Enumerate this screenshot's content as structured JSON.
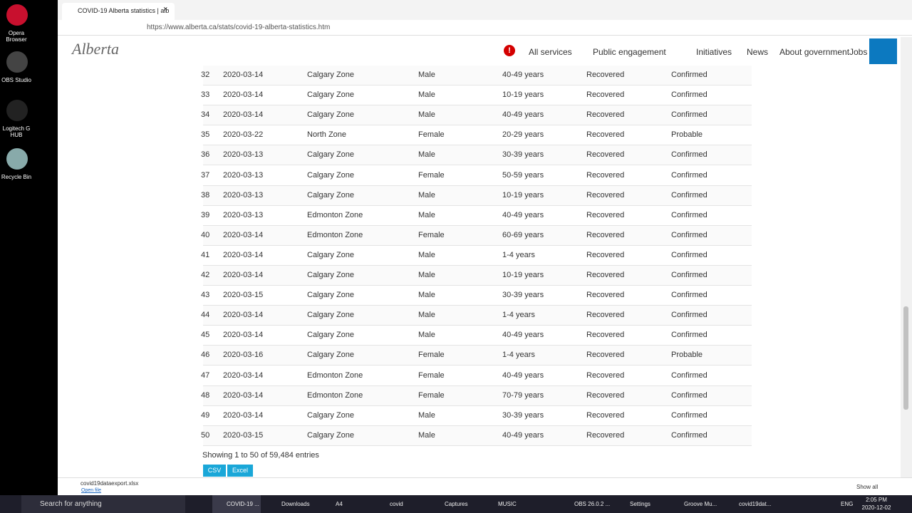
{
  "desktop_icons": [
    "Opera Browser",
    "OBS Studio",
    "Logitech G HUB",
    "Recycle Bin"
  ],
  "browser": {
    "tab_title": "COVID-19 Alberta statistics | alb",
    "url": "https://www.alberta.ca/stats/covid-19-alberta-statistics.htm"
  },
  "site": {
    "logo": "Alberta",
    "nav": [
      "All services",
      "Public engagement",
      "Initiatives",
      "News",
      "About government",
      "Jobs"
    ]
  },
  "table": {
    "rows": [
      [
        "32",
        "2020-03-14",
        "Calgary Zone",
        "Male",
        "40-49 years",
        "Recovered",
        "Confirmed"
      ],
      [
        "33",
        "2020-03-14",
        "Calgary Zone",
        "Male",
        "10-19 years",
        "Recovered",
        "Confirmed"
      ],
      [
        "34",
        "2020-03-14",
        "Calgary Zone",
        "Male",
        "40-49 years",
        "Recovered",
        "Confirmed"
      ],
      [
        "35",
        "2020-03-22",
        "North Zone",
        "Female",
        "20-29 years",
        "Recovered",
        "Probable"
      ],
      [
        "36",
        "2020-03-13",
        "Calgary Zone",
        "Male",
        "30-39 years",
        "Recovered",
        "Confirmed"
      ],
      [
        "37",
        "2020-03-13",
        "Calgary Zone",
        "Female",
        "50-59 years",
        "Recovered",
        "Confirmed"
      ],
      [
        "38",
        "2020-03-13",
        "Calgary Zone",
        "Male",
        "10-19 years",
        "Recovered",
        "Confirmed"
      ],
      [
        "39",
        "2020-03-13",
        "Edmonton Zone",
        "Male",
        "40-49 years",
        "Recovered",
        "Confirmed"
      ],
      [
        "40",
        "2020-03-14",
        "Edmonton Zone",
        "Female",
        "60-69 years",
        "Recovered",
        "Confirmed"
      ],
      [
        "41",
        "2020-03-14",
        "Calgary Zone",
        "Male",
        "1-4 years",
        "Recovered",
        "Confirmed"
      ],
      [
        "42",
        "2020-03-14",
        "Calgary Zone",
        "Male",
        "10-19 years",
        "Recovered",
        "Confirmed"
      ],
      [
        "43",
        "2020-03-15",
        "Calgary Zone",
        "Male",
        "30-39 years",
        "Recovered",
        "Confirmed"
      ],
      [
        "44",
        "2020-03-14",
        "Calgary Zone",
        "Male",
        "1-4 years",
        "Recovered",
        "Confirmed"
      ],
      [
        "45",
        "2020-03-14",
        "Calgary Zone",
        "Male",
        "40-49 years",
        "Recovered",
        "Confirmed"
      ],
      [
        "46",
        "2020-03-16",
        "Calgary Zone",
        "Female",
        "1-4 years",
        "Recovered",
        "Probable"
      ],
      [
        "47",
        "2020-03-14",
        "Edmonton Zone",
        "Female",
        "40-49 years",
        "Recovered",
        "Confirmed"
      ],
      [
        "48",
        "2020-03-14",
        "Edmonton Zone",
        "Female",
        "70-79 years",
        "Recovered",
        "Confirmed"
      ],
      [
        "49",
        "2020-03-14",
        "Calgary Zone",
        "Male",
        "30-39 years",
        "Recovered",
        "Confirmed"
      ],
      [
        "50",
        "2020-03-15",
        "Calgary Zone",
        "Male",
        "40-49 years",
        "Recovered",
        "Confirmed"
      ]
    ]
  },
  "table_info": "Showing 1 to 50 of 59,484 entries",
  "buttons": [
    "CSV",
    "Excel"
  ],
  "download": {
    "file": "covid19dataexport.xlsx",
    "action": "Open file",
    "show_all": "Show all"
  },
  "taskbar": {
    "search": "Search for anything",
    "items": [
      "COVID-19 ...",
      "Downloads",
      "A4",
      "covid",
      "Captures",
      "MUSIC",
      "OBS 26.0.2 ...",
      "Settings",
      "Groove Mu...",
      "covid19dat..."
    ],
    "language": "ENG",
    "time": "2:05 PM",
    "date": "2020-12-02"
  }
}
